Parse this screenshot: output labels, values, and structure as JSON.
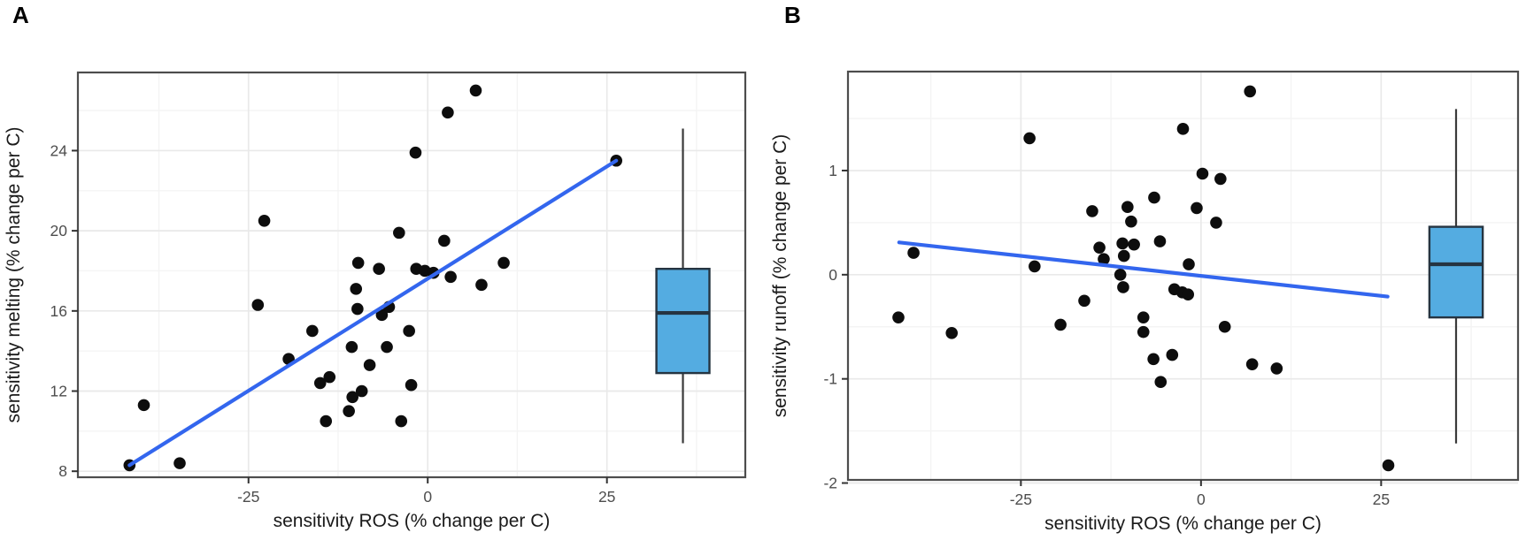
{
  "figure_type": "two-panel scatter figure with regression lines and marginal boxplots",
  "colors": {
    "point": "#0d0d0d",
    "trend_line": "#3366ee",
    "box_fill": "#54ace1",
    "box_stroke": "#253441",
    "whisker": "#3a3a3a",
    "panel_border": "#4d4d4d",
    "grid_major": "#e9e9e9",
    "grid_minor": "#f4f4f4",
    "tick_text": "#4d4d4d",
    "axis_title_text": "#1a1a1a",
    "panel_label_text": "#000000"
  },
  "chart_data": [
    {
      "type": "scatter",
      "panel_label": "A",
      "xlabel": "sensitivity ROS (% change per C)",
      "ylabel": "sensitivity melting (% change per C)",
      "xlim": [
        -48.8,
        44.3
      ],
      "ylim": [
        7.7,
        27.9
      ],
      "x_ticks": [
        -25,
        0,
        25
      ],
      "y_ticks": [
        8,
        12,
        16,
        20,
        24
      ],
      "x_minor": [
        -37.5,
        -12.5,
        12.5,
        37.5
      ],
      "y_minor": [
        10,
        14,
        18,
        22,
        26
      ],
      "grid": true,
      "legend": "none",
      "points": [
        [
          -41.6,
          8.3
        ],
        [
          -39.6,
          11.3
        ],
        [
          -34.6,
          8.4
        ],
        [
          -23.7,
          16.3
        ],
        [
          -22.8,
          20.5
        ],
        [
          -19.4,
          13.6
        ],
        [
          -16.1,
          15.0
        ],
        [
          -15.0,
          12.4
        ],
        [
          -13.7,
          12.7
        ],
        [
          -14.2,
          10.5
        ],
        [
          -10.6,
          14.2
        ],
        [
          -10.5,
          11.7
        ],
        [
          -11.0,
          11.0
        ],
        [
          -10.0,
          17.1
        ],
        [
          -9.7,
          18.4
        ],
        [
          -9.8,
          16.1
        ],
        [
          -9.2,
          12.0
        ],
        [
          -8.1,
          13.3
        ],
        [
          -6.8,
          18.1
        ],
        [
          -6.4,
          15.8
        ],
        [
          -5.4,
          16.2
        ],
        [
          -5.7,
          14.2
        ],
        [
          -4.0,
          19.9
        ],
        [
          -3.7,
          10.5
        ],
        [
          -2.6,
          15.0
        ],
        [
          -2.3,
          12.3
        ],
        [
          -1.7,
          23.9
        ],
        [
          -1.6,
          18.1
        ],
        [
          -0.4,
          18.0
        ],
        [
          0.8,
          17.9
        ],
        [
          2.3,
          19.5
        ],
        [
          2.8,
          25.9
        ],
        [
          3.2,
          17.7
        ],
        [
          6.7,
          27.0
        ],
        [
          7.5,
          17.3
        ],
        [
          10.6,
          18.4
        ],
        [
          26.3,
          23.5
        ]
      ],
      "trend_line": {
        "x1": -41.6,
        "y1": 8.3,
        "x2": 26.3,
        "y2": 23.5
      },
      "boxplot": {
        "x_center": 35.6,
        "box_halfwidth": 3.7,
        "whisker_low": 9.4,
        "q1": 12.9,
        "median": 15.9,
        "q3": 18.1,
        "whisker_high": 25.1
      }
    },
    {
      "type": "scatter",
      "panel_label": "B",
      "xlabel": "sensitivity ROS (% change per C)",
      "ylabel": "sensitivity runoff (% change per C)",
      "xlim": [
        -49.0,
        44.0
      ],
      "ylim": [
        -1.97,
        1.95
      ],
      "x_ticks": [
        -25,
        0,
        25
      ],
      "y_ticks": [
        -2,
        -1,
        0,
        1
      ],
      "x_minor": [
        -37.5,
        -12.5,
        12.5,
        37.5
      ],
      "y_minor": [
        -1.5,
        -0.5,
        0.5,
        1.5
      ],
      "grid": true,
      "legend": "none",
      "points": [
        [
          -42.0,
          -0.41
        ],
        [
          -39.9,
          0.21
        ],
        [
          -34.6,
          -0.56
        ],
        [
          -23.8,
          1.31
        ],
        [
          -23.1,
          0.08
        ],
        [
          -19.5,
          -0.48
        ],
        [
          -16.2,
          -0.25
        ],
        [
          -15.1,
          0.61
        ],
        [
          -14.1,
          0.26
        ],
        [
          -13.5,
          0.15
        ],
        [
          -10.9,
          0.3
        ],
        [
          -9.3,
          0.29
        ],
        [
          -10.7,
          0.18
        ],
        [
          -11.2,
          0.0
        ],
        [
          -10.8,
          -0.12
        ],
        [
          -10.2,
          0.65
        ],
        [
          -9.7,
          0.51
        ],
        [
          -6.5,
          0.74
        ],
        [
          -5.7,
          0.32
        ],
        [
          -8.0,
          -0.41
        ],
        [
          -8.0,
          -0.55
        ],
        [
          -6.6,
          -0.81
        ],
        [
          -5.6,
          -1.03
        ],
        [
          -4.0,
          -0.77
        ],
        [
          -3.7,
          -0.14
        ],
        [
          -2.6,
          -0.17
        ],
        [
          -1.8,
          -0.19
        ],
        [
          -1.7,
          0.1
        ],
        [
          -2.5,
          1.4
        ],
        [
          0.2,
          0.97
        ],
        [
          2.7,
          0.92
        ],
        [
          -0.6,
          0.64
        ],
        [
          2.1,
          0.5
        ],
        [
          3.3,
          -0.5
        ],
        [
          6.8,
          1.76
        ],
        [
          7.1,
          -0.86
        ],
        [
          10.5,
          -0.9
        ],
        [
          26.0,
          -1.83
        ]
      ],
      "trend_line": {
        "x1": -41.9,
        "y1": 0.31,
        "x2": 25.9,
        "y2": -0.21
      },
      "boxplot": {
        "x_center": 35.4,
        "box_halfwidth": 3.7,
        "whisker_low": -1.62,
        "q1": -0.41,
        "median": 0.1,
        "q3": 0.46,
        "whisker_high": 1.59
      }
    }
  ]
}
